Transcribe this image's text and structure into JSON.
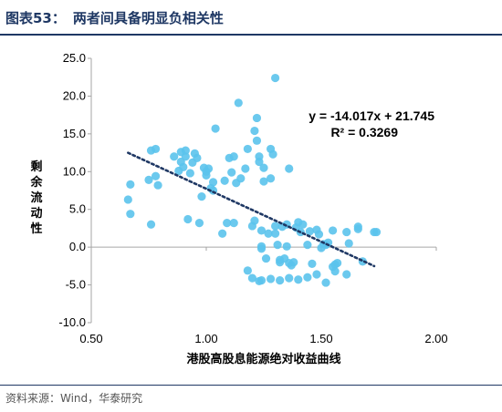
{
  "header": {
    "figure_number": "图表53：",
    "title": "两者间具备明显负相关性"
  },
  "footer": {
    "source": "资料来源：Wind，华泰研究"
  },
  "colors": {
    "title": "#1f3864",
    "point": "#5bc3ec",
    "trend": "#1f3864"
  },
  "chart_data": {
    "type": "scatter",
    "xlabel": "港股高股息能源绝对收益曲线",
    "ylabel": "剩余流动性",
    "xlim": [
      0.5,
      2.0
    ],
    "ylim": [
      -10,
      25
    ],
    "xticks": [
      "0.50",
      "1.00",
      "1.50",
      "2.00"
    ],
    "yticks": [
      "-10.0",
      "-5.0",
      "0.0",
      "5.0",
      "10.0",
      "15.0",
      "20.0",
      "25.0"
    ],
    "grid": false,
    "annotation": {
      "equation": "y = -14.017x + 21.745",
      "r2": "R² = 0.3269"
    },
    "trendline": {
      "slope": -14.017,
      "intercept": 21.745,
      "x_range": [
        0.66,
        1.73
      ]
    },
    "points": [
      [
        0.66,
        6.3
      ],
      [
        0.67,
        8.3
      ],
      [
        0.67,
        4.4
      ],
      [
        0.75,
        8.9
      ],
      [
        0.76,
        12.8
      ],
      [
        0.76,
        3.0
      ],
      [
        0.78,
        9.4
      ],
      [
        0.78,
        13.0
      ],
      [
        0.79,
        8.2
      ],
      [
        0.86,
        12.0
      ],
      [
        0.88,
        10.1
      ],
      [
        0.89,
        11.3
      ],
      [
        0.89,
        12.6
      ],
      [
        0.9,
        10.6
      ],
      [
        0.91,
        12.0
      ],
      [
        0.91,
        12.8
      ],
      [
        0.92,
        3.7
      ],
      [
        0.93,
        9.8
      ],
      [
        0.94,
        11.2
      ],
      [
        0.95,
        12.4
      ],
      [
        0.96,
        11.8
      ],
      [
        0.97,
        3.2
      ],
      [
        0.98,
        6.7
      ],
      [
        0.99,
        10.5
      ],
      [
        1.0,
        9.5
      ],
      [
        1.0,
        10.0
      ],
      [
        1.01,
        10.4
      ],
      [
        1.02,
        7.8
      ],
      [
        1.03,
        8.6
      ],
      [
        1.03,
        7.5
      ],
      [
        1.04,
        15.7
      ],
      [
        1.07,
        1.8
      ],
      [
        1.08,
        8.8
      ],
      [
        1.09,
        3.2
      ],
      [
        1.1,
        11.8
      ],
      [
        1.11,
        9.9
      ],
      [
        1.12,
        3.2
      ],
      [
        1.12,
        12.0
      ],
      [
        1.13,
        8.5
      ],
      [
        1.14,
        19.1
      ],
      [
        1.15,
        9.1
      ],
      [
        1.17,
        10.4
      ],
      [
        1.18,
        13.0
      ],
      [
        1.2,
        2.8
      ],
      [
        1.21,
        3.5
      ],
      [
        1.21,
        15.4
      ],
      [
        1.22,
        14.1
      ],
      [
        1.22,
        17.1
      ],
      [
        1.23,
        12.0
      ],
      [
        1.23,
        11.3
      ],
      [
        1.24,
        2.2
      ],
      [
        1.24,
        0.1
      ],
      [
        1.24,
        -0.2
      ],
      [
        1.25,
        10.5
      ],
      [
        1.25,
        8.7
      ],
      [
        1.26,
        -1.5
      ],
      [
        1.27,
        1.8
      ],
      [
        1.28,
        9.1
      ],
      [
        1.28,
        13.0
      ],
      [
        1.29,
        12.3
      ],
      [
        1.3,
        22.4
      ],
      [
        1.3,
        2.8
      ],
      [
        1.3,
        1.8
      ],
      [
        1.31,
        0.3
      ],
      [
        1.32,
        -2.0
      ],
      [
        1.32,
        -1.7
      ],
      [
        1.33,
        2.7
      ],
      [
        1.34,
        -1.5
      ],
      [
        1.35,
        3.0
      ],
      [
        1.35,
        0.1
      ],
      [
        1.36,
        10.4
      ],
      [
        1.36,
        -2.1
      ],
      [
        1.37,
        -2.4
      ],
      [
        1.38,
        -2.0
      ],
      [
        1.39,
        2.6
      ],
      [
        1.4,
        3.3
      ],
      [
        1.41,
        2.0
      ],
      [
        1.42,
        3.0
      ],
      [
        1.44,
        0.3
      ],
      [
        1.45,
        2.1
      ],
      [
        1.46,
        -2.2
      ],
      [
        1.48,
        2.3
      ],
      [
        1.49,
        1.7
      ],
      [
        1.5,
        -0.1
      ],
      [
        1.51,
        0.4
      ],
      [
        1.52,
        0.3
      ],
      [
        1.53,
        0.6
      ],
      [
        1.55,
        -2.6
      ],
      [
        1.55,
        2.2
      ],
      [
        1.56,
        -2.3
      ],
      [
        1.57,
        -2.1
      ],
      [
        1.61,
        2.0
      ],
      [
        1.62,
        0.5
      ],
      [
        1.66,
        2.4
      ],
      [
        1.66,
        2.7
      ],
      [
        1.68,
        -1.9
      ],
      [
        1.73,
        2.0
      ],
      [
        1.74,
        2.0
      ],
      [
        1.18,
        -3.1
      ],
      [
        1.2,
        -4.1
      ],
      [
        1.23,
        -4.5
      ],
      [
        1.24,
        -4.4
      ],
      [
        1.28,
        -4.2
      ],
      [
        1.32,
        -4.4
      ],
      [
        1.36,
        -4.1
      ],
      [
        1.4,
        -4.3
      ],
      [
        1.44,
        -4.0
      ],
      [
        1.48,
        -3.6
      ],
      [
        1.52,
        -4.7
      ],
      [
        1.56,
        -3.2
      ],
      [
        1.61,
        -3.6
      ]
    ]
  }
}
